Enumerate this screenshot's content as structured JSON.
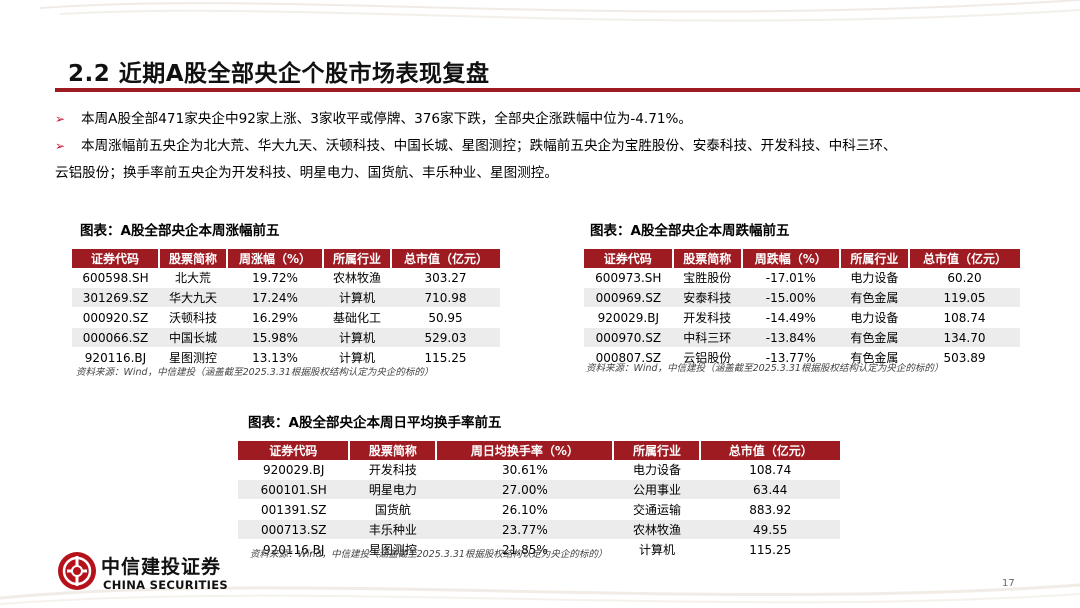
{
  "title": "2.2  近期A股全部央企个股市场表现复盘",
  "bullets": [
    "本周A股全部471家央企中92家上涨、3家收平或停牌、376家下跌，全部央企涨跌幅中位为-4.71%。",
    "本周涨幅前五央企为北大荒、华大九天、沃顿科技、中国长城、星图测控；跌幅前五央企为宝胜股份、安泰科技、开发科技、中科三环、",
    "云铝股份；换手率前五央企为开发科技、明星电力、国货航、丰乐种业、星图测控。"
  ],
  "table_gainers": {
    "caption": "图表：A股全部央企本周涨幅前五",
    "headers": [
      "证券代码",
      "股票简称",
      "周涨幅（%）",
      "所属行业",
      "总市值（亿元）"
    ],
    "rows": [
      [
        "600598.SH",
        "北大荒",
        "19.72%",
        "农林牧渔",
        "303.27"
      ],
      [
        "301269.SZ",
        "华大九天",
        "17.24%",
        "计算机",
        "710.98"
      ],
      [
        "000920.SZ",
        "沃顿科技",
        "16.29%",
        "基础化工",
        "50.95"
      ],
      [
        "000066.SZ",
        "中国长城",
        "15.98%",
        "计算机",
        "529.03"
      ],
      [
        "920116.BJ",
        "星图测控",
        "13.13%",
        "计算机",
        "115.25"
      ]
    ],
    "source": "资料来源：Wind，中信建投（涵盖截至2025.3.31根据股权结构认定为央企的标的）"
  },
  "table_losers": {
    "caption": "图表：A股全部央企本周跌幅前五",
    "headers": [
      "证券代码",
      "股票简称",
      "周跌幅（%）",
      "所属行业",
      "总市值（亿元）"
    ],
    "rows": [
      [
        "600973.SH",
        "宝胜股份",
        "-17.01%",
        "电力设备",
        "60.20"
      ],
      [
        "000969.SZ",
        "安泰科技",
        "-15.00%",
        "有色金属",
        "119.05"
      ],
      [
        "920029.BJ",
        "开发科技",
        "-14.49%",
        "电力设备",
        "108.74"
      ],
      [
        "000970.SZ",
        "中科三环",
        "-13.84%",
        "有色金属",
        "134.70"
      ],
      [
        "000807.SZ",
        "云铝股份",
        "-13.77%",
        "有色金属",
        "503.89"
      ]
    ],
    "source": "资料来源：Wind，中信建投（涵盖截至2025.3.31根据股权结构认定为央企的标的）"
  },
  "table_turnover": {
    "caption": "图表：A股全部央企本周日平均换手率前五",
    "headers": [
      "证券代码",
      "股票简称",
      "周日均换手率（%）",
      "所属行业",
      "总市值（亿元）"
    ],
    "rows": [
      [
        "920029.BJ",
        "开发科技",
        "30.61%",
        "电力设备",
        "108.74"
      ],
      [
        "600101.SH",
        "明星电力",
        "27.00%",
        "公用事业",
        "63.44"
      ],
      [
        "001391.SZ",
        "国货航",
        "26.10%",
        "交通运输",
        "883.92"
      ],
      [
        "000713.SZ",
        "丰乐种业",
        "23.77%",
        "农林牧渔",
        "49.55"
      ],
      [
        "920116.BJ",
        "星图测控",
        "21.85%",
        "计算机",
        "115.25"
      ]
    ],
    "source": "资料来源：Wind，中信建投（涵盖截至2025.3.31根据股权结构认定为央企的标的）"
  },
  "logo": {
    "cn": "中信建投证券",
    "en": "CHINA SECURITIES"
  },
  "page_number": "17",
  "colors": {
    "accent": "#9e1b22",
    "bullet_arrow": "#c8102e",
    "row_alt": "#ececec"
  }
}
